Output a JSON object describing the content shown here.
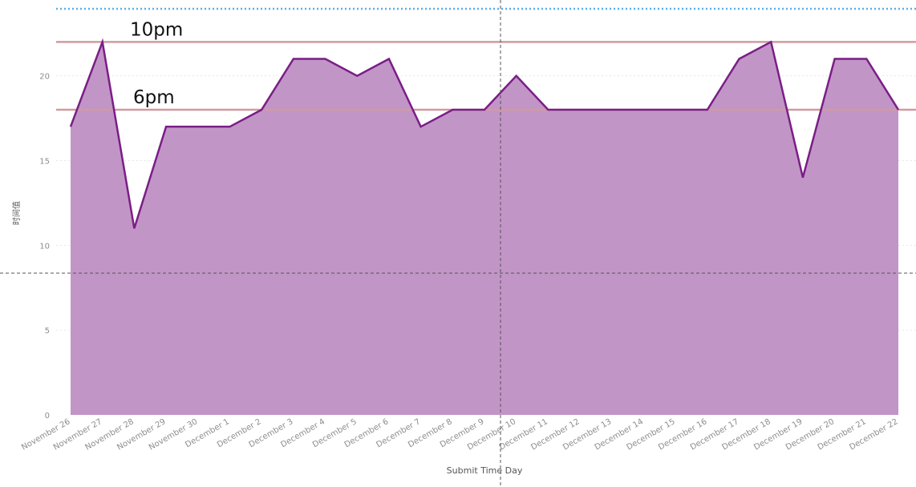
{
  "chart_data": {
    "type": "area",
    "xlabel": "Submit Time Day",
    "ylabel": "时间值",
    "ylim": [
      0,
      24
    ],
    "yticks": [
      0,
      5,
      10,
      15,
      20
    ],
    "grid": true,
    "categories": [
      "November 26",
      "November 27",
      "November 28",
      "November 29",
      "November 30",
      "December 1",
      "December 2",
      "December 3",
      "December 4",
      "December 5",
      "December 6",
      "December 7",
      "December 8",
      "December 9",
      "December 10",
      "December 11",
      "December 12",
      "December 13",
      "December 14",
      "December 15",
      "December 16",
      "December 17",
      "December 18",
      "December 19",
      "December 20",
      "December 21",
      "December 22"
    ],
    "series": [
      {
        "values": [
          17,
          22,
          11,
          17,
          17,
          17,
          18,
          21,
          21,
          20,
          21,
          17,
          18,
          18,
          20,
          18,
          18,
          18,
          18,
          18,
          18,
          21,
          22,
          14,
          21,
          21,
          18
        ]
      }
    ],
    "reference_lines": [
      {
        "label": "10pm",
        "value": 22
      },
      {
        "label": "6pm",
        "value": 18
      }
    ],
    "colors": {
      "fill": "#c295c7",
      "line": "#7a1e86",
      "reference": "#d09aa0",
      "top_dotted": "#5aaee8",
      "crosshair": "#555555",
      "grid": "#e6e6e6"
    }
  }
}
